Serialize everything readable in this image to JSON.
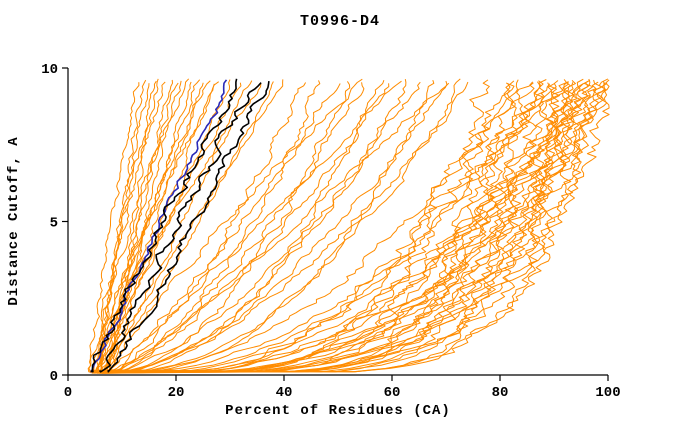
{
  "chart_data": {
    "type": "line",
    "title": "T0996-D4",
    "xlabel": "Percent of Residues (CA)",
    "ylabel": "Distance Cutoff, A",
    "xlim": [
      0,
      100
    ],
    "ylim": [
      0,
      10
    ],
    "x_ticks": [
      0,
      20,
      40,
      60,
      80,
      100
    ],
    "y_ticks": [
      0,
      5,
      10
    ],
    "grid": false,
    "legend": "none",
    "colors": {
      "models": "#ff8c00",
      "highlight": "#000000",
      "reference": "#2a2ab8"
    },
    "x_start_range": [
      4,
      8
    ],
    "curve_top_y": 9.6,
    "orange_curves": [
      [
        13,
        1.3,
        0.7
      ],
      [
        14,
        1.0,
        0.7
      ],
      [
        15,
        1.5,
        0.7
      ],
      [
        16,
        0.9,
        0.7
      ],
      [
        17,
        1.2,
        0.7
      ],
      [
        18,
        1.4,
        0.7
      ],
      [
        19,
        1.0,
        0.7
      ],
      [
        20,
        1.2,
        0.7
      ],
      [
        21,
        0.85,
        0.7
      ],
      [
        22,
        1.5,
        0.7
      ],
      [
        23,
        1.05,
        0.7
      ],
      [
        24,
        1.2,
        0.7
      ],
      [
        25,
        0.9,
        0.7
      ],
      [
        26,
        1.35,
        0.7
      ],
      [
        27,
        1.05,
        0.7
      ],
      [
        28,
        1.2,
        0.7
      ],
      [
        30,
        0.95,
        0.7
      ],
      [
        32,
        1.15,
        0.7
      ],
      [
        34,
        1.0,
        0.7
      ],
      [
        36,
        1.25,
        0.7
      ],
      [
        38,
        0.85,
        0.7
      ],
      [
        40,
        1.05,
        0.7
      ],
      [
        44,
        0.7,
        1.2
      ],
      [
        47,
        0.55,
        1.2
      ],
      [
        50,
        0.8,
        1.2
      ],
      [
        52,
        0.5,
        1.2
      ],
      [
        55,
        1.2,
        1.0
      ],
      [
        55,
        0.65,
        1.2
      ],
      [
        58,
        0.45,
        1.2
      ],
      [
        60,
        0.7,
        1.2
      ],
      [
        62,
        1.0,
        1.0
      ],
      [
        63,
        0.5,
        1.2
      ],
      [
        65,
        0.6,
        1.2
      ],
      [
        68,
        0.42,
        1.2
      ],
      [
        70,
        0.9,
        1.0
      ],
      [
        70,
        0.55,
        1.2
      ],
      [
        73,
        0.47,
        1.2
      ],
      [
        75,
        0.6,
        1.2
      ],
      [
        78,
        0.3,
        2.6
      ],
      [
        80,
        0.25,
        2.6
      ],
      [
        82,
        0.35,
        2.6
      ],
      [
        83,
        0.2,
        2.6
      ],
      [
        85,
        0.3,
        2.6
      ],
      [
        85,
        0.5,
        1.8
      ],
      [
        86,
        0.18,
        2.6
      ],
      [
        87,
        0.28,
        2.6
      ],
      [
        88,
        0.4,
        2.0
      ],
      [
        88,
        0.22,
        2.6
      ],
      [
        89,
        0.32,
        2.6
      ],
      [
        90,
        0.18,
        2.6
      ],
      [
        90,
        0.45,
        1.8
      ],
      [
        91,
        0.22,
        2.6
      ],
      [
        92,
        0.15,
        2.6
      ],
      [
        92,
        0.35,
        2.6
      ],
      [
        93,
        0.2,
        2.6
      ],
      [
        93,
        0.3,
        2.6
      ],
      [
        94,
        0.16,
        2.6
      ],
      [
        94,
        0.28,
        2.6
      ],
      [
        95,
        0.2,
        2.6
      ],
      [
        95,
        0.32,
        2.6
      ],
      [
        96,
        0.15,
        2.6
      ],
      [
        96,
        0.25,
        2.6
      ],
      [
        96,
        0.4,
        2.0
      ],
      [
        97,
        0.2,
        2.6
      ],
      [
        97,
        0.3,
        2.6
      ],
      [
        98,
        0.14,
        2.6
      ],
      [
        98,
        0.24,
        2.6
      ],
      [
        99,
        0.18,
        2.6
      ],
      [
        99,
        0.28,
        2.6
      ],
      [
        100,
        0.15,
        2.6
      ],
      [
        100,
        0.22,
        2.6
      ]
    ],
    "black_curves": [
      [
        32,
        1.1,
        1.5
      ],
      [
        34.5,
        1.0,
        1.5
      ],
      [
        37,
        0.95,
        1.5
      ]
    ],
    "blue_curve": [
      30,
      1.05,
      0.9
    ]
  }
}
